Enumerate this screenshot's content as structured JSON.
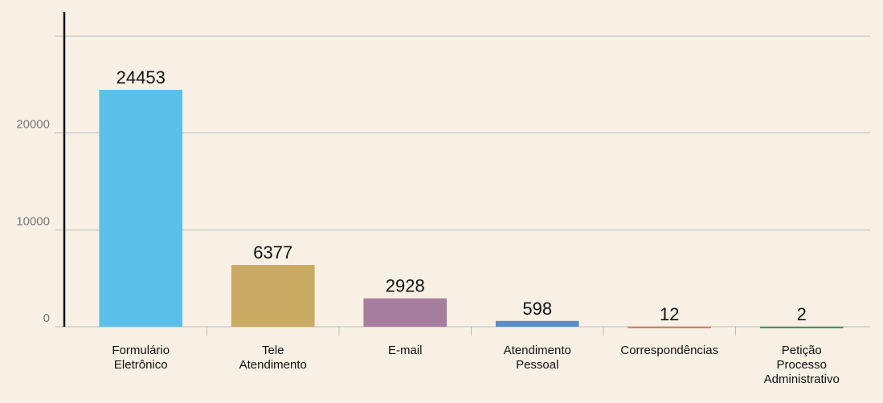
{
  "chart_data": {
    "type": "bar",
    "categories": [
      "Formulário\nEletrônico",
      "Tele\nAtendimento",
      "E-mail",
      "Atendimento\nPessoal",
      "Correspondências",
      "Petição\nProcesso\nAdministrativo"
    ],
    "values": [
      24453,
      6377,
      2928,
      598,
      12,
      2
    ],
    "colors": [
      "#5bbfea",
      "#c8aa62",
      "#a87e9e",
      "#5b8ec8",
      "#d9785a",
      "#3a9a5a"
    ],
    "ylim": [
      0,
      30000
    ],
    "yticks": [
      0,
      10000,
      20000
    ],
    "grid": true
  }
}
